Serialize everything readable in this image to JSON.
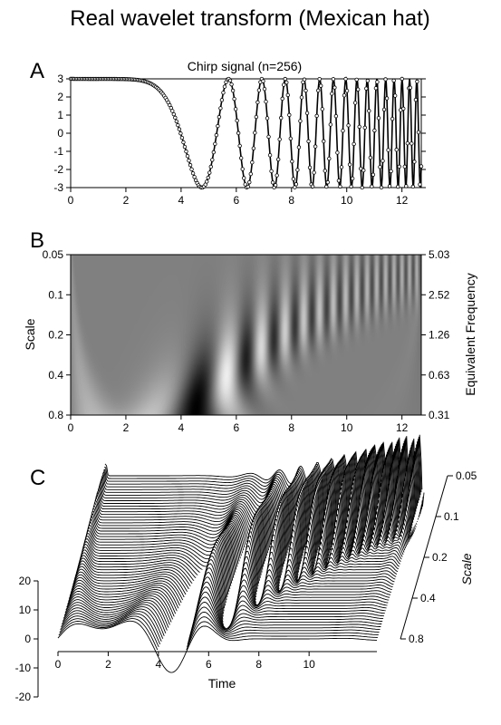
{
  "figure": {
    "title": "Real wavelet transform (Mexican hat)"
  },
  "chart_data": [
    {
      "panel": "A",
      "type": "line",
      "title": "Chirp signal (n=256)",
      "xlabel": "",
      "ylabel": "",
      "xlim": [
        0,
        12.7
      ],
      "ylim": [
        -3,
        3
      ],
      "xticks": [
        0,
        2,
        4,
        6,
        8,
        10,
        12
      ],
      "yticks": [
        3,
        2,
        1,
        0,
        -1,
        -2,
        -3
      ],
      "n_points": 256,
      "signal": "3*cos(0.0625*t^3 - 0.2*t^2 + 0.2*t)",
      "markers": "open-circle",
      "grid": false
    },
    {
      "panel": "B",
      "type": "heatmap",
      "title": "",
      "xlabel": "",
      "ylabel": "Scale",
      "ylabel_right": "Equivalent Frequency",
      "xlim": [
        0,
        12.7
      ],
      "xticks": [
        0,
        2,
        4,
        6,
        8,
        10,
        12
      ],
      "scale_ticks": [
        "0.05",
        "0.1",
        "0.2",
        "0.4",
        "0.8"
      ],
      "frequency_ticks": [
        "5.03",
        "2.52",
        "1.26",
        "0.63",
        "0.31"
      ],
      "colormap": "grayscale"
    },
    {
      "panel": "C",
      "type": "line",
      "title": "",
      "xlabel": "Time",
      "scale_label": "Scale",
      "xlim": [
        0,
        12.7
      ],
      "xticks": [
        0,
        2,
        4,
        6,
        8,
        10
      ],
      "zticks": [
        20,
        10,
        0,
        -10,
        -20
      ],
      "scale_ticks": [
        "0.05",
        "0.1",
        "0.2",
        "0.4",
        "0.8"
      ],
      "n_traces": 60
    }
  ]
}
